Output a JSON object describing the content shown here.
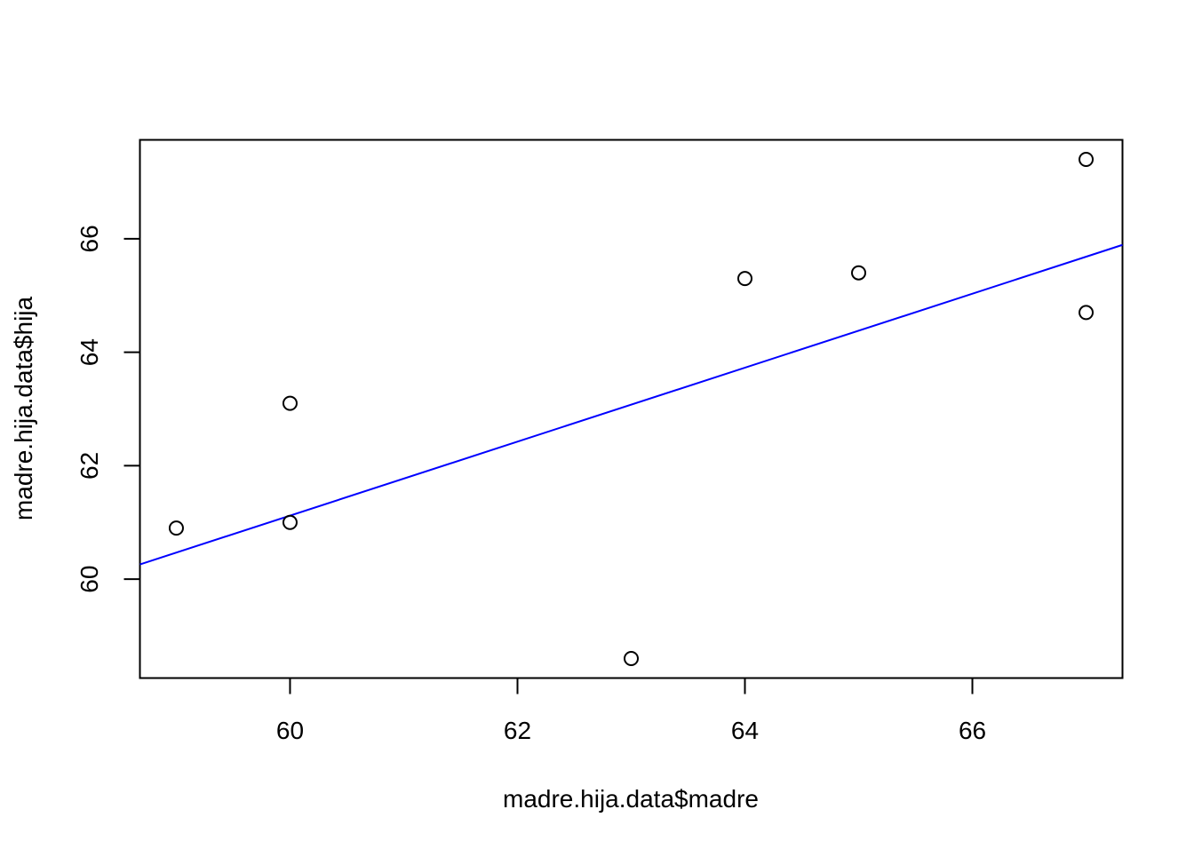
{
  "chart_data": {
    "type": "scatter",
    "title": "",
    "xlabel": "madre.hija.data$madre",
    "ylabel": "madre.hija.data$hija",
    "xlim": [
      58.68,
      67.32
    ],
    "ylim": [
      58.256,
      67.744
    ],
    "x_ticks": [
      60,
      62,
      64,
      66
    ],
    "y_ticks": [
      60,
      62,
      64,
      66
    ],
    "x_tick_labels": [
      "60",
      "62",
      "64",
      "66"
    ],
    "y_tick_labels": [
      "60",
      "62",
      "64",
      "66"
    ],
    "grid": false,
    "points": [
      {
        "x": 59,
        "y": 60.9
      },
      {
        "x": 60,
        "y": 63.1
      },
      {
        "x": 60,
        "y": 61.0
      },
      {
        "x": 63,
        "y": 58.6
      },
      {
        "x": 64,
        "y": 65.3
      },
      {
        "x": 65,
        "y": 65.4
      },
      {
        "x": 67,
        "y": 67.4
      },
      {
        "x": 67,
        "y": 64.7
      }
    ],
    "regression_line": {
      "intercept": 22.0,
      "slope": 0.652
    },
    "colors": {
      "points": "#000000",
      "line": "#0000ff"
    }
  }
}
